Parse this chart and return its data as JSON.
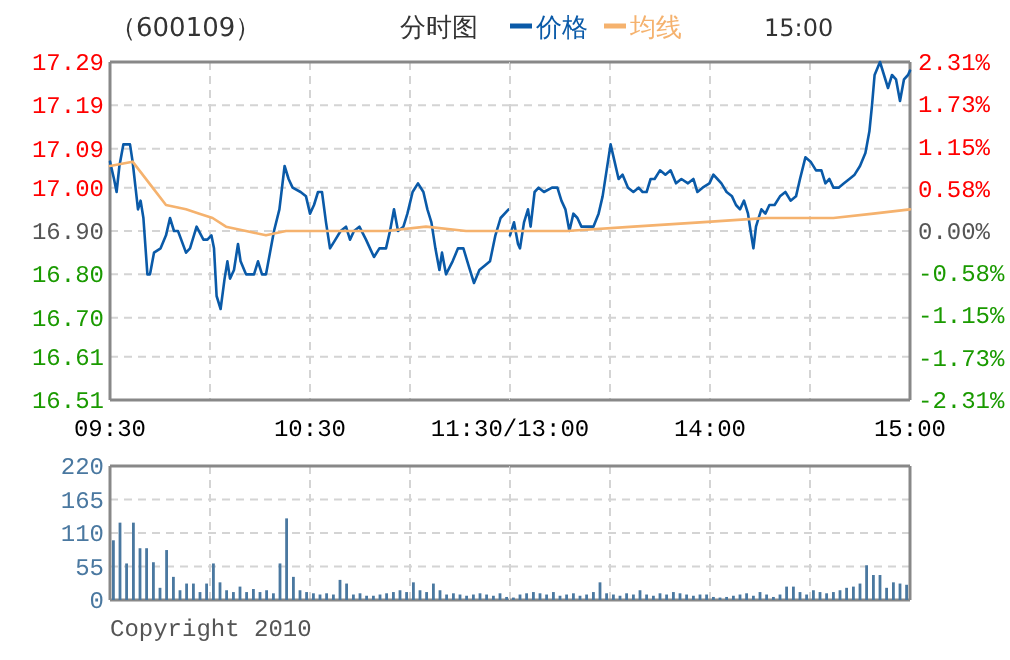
{
  "chart_data": [
    {
      "type": "line",
      "title": "（600109）",
      "subtitle": "分时图",
      "annotations": [
        "15:00"
      ],
      "legend": "top",
      "grid": true,
      "xlim": [
        9.5,
        11.5
      ],
      "xticks": [
        {
          "value": 9.5,
          "label": "09:30"
        },
        {
          "value": 10,
          "label": null
        },
        {
          "value": 10.5,
          "label": "10:30"
        },
        {
          "value": 11,
          "label": null
        },
        {
          "value": 11.5,
          "label": "11:30/13:00"
        }
      ],
      "ylim": [
        16.51,
        17.29
      ],
      "yticks": [
        16.51,
        16.61,
        {
          "value": 16.7,
          "label": "16.70"
        },
        {
          "value": 16.8,
          "label": "16.80"
        },
        {
          "value": 16.9,
          "label": "16.90"
        },
        {
          "value": 17.0,
          "label": "17.00"
        },
        17.09,
        17.19,
        17.29
      ],
      "series": [
        {
          "name": "价格",
          "color": "#0a5aa8",
          "x": [
            9.5,
            9.52,
            9.533,
            9.547,
            9.567,
            9.6,
            9.613,
            9.64,
            9.653,
            9.667,
            9.687,
            9.7,
            9.72,
            9.753,
            9.78,
            9.8,
            9.82,
            9.84,
            9.88,
            9.9,
            9.933,
            9.967,
            9.987,
            10.007,
            10.02,
            10.033,
            10.053,
            10.073,
            10.087,
            10.1,
            10.12,
            10.14,
            10.153,
            10.18,
            10.22,
            10.24,
            10.26,
            10.28,
            10.32,
            10.347,
            10.373,
            10.393,
            10.413,
            10.453,
            10.48,
            10.5,
            10.52,
            10.54,
            10.56,
            10.58,
            10.6,
            10.627,
            10.653,
            10.68,
            10.7,
            10.72,
            10.747,
            10.78,
            10.8,
            10.82,
            10.847,
            10.88,
            10.9,
            10.92,
            10.94,
            10.967,
            10.987,
            11.013,
            11.04,
            11.067,
            11.087,
            11.107,
            11.127,
            11.147,
            11.16,
            11.18,
            11.213,
            11.24,
            11.267,
            11.293,
            11.32,
            11.347,
            11.373,
            11.4,
            11.427,
            11.453,
            11.493
          ],
          "values": [
            17.06,
            17.02,
            16.99,
            17.05,
            17.1,
            17.1,
            17.06,
            16.95,
            16.97,
            16.93,
            16.8,
            16.8,
            16.85,
            16.86,
            16.89,
            16.93,
            16.9,
            16.9,
            16.85,
            16.86,
            16.91,
            16.88,
            16.88,
            16.89,
            16.86,
            16.75,
            16.72,
            16.79,
            16.83,
            16.79,
            16.81,
            16.87,
            16.83,
            16.8,
            16.8,
            16.83,
            16.8,
            16.8,
            16.9,
            16.95,
            17.05,
            17.02,
            17.0,
            16.99,
            16.98,
            16.94,
            16.96,
            16.99,
            16.99,
            16.92,
            16.86,
            16.88,
            16.9,
            16.91,
            16.88,
            16.9,
            16.91,
            16.88,
            16.86,
            16.84,
            16.86,
            16.86,
            16.9,
            16.95,
            16.9,
            16.91,
            16.94,
            16.99,
            17.01,
            16.99,
            16.95,
            16.92,
            16.86,
            16.81,
            16.85,
            16.8,
            16.83,
            16.86,
            16.86,
            16.82,
            16.78,
            16.81,
            16.82,
            16.83,
            16.89,
            16.93,
            16.95
          ]
        },
        {
          "name": "均线",
          "color": "#f5b26e",
          "x": [
            9.5,
            9.613,
            9.713,
            9.78,
            9.88,
            9.947,
            10.013,
            10.08,
            10.18,
            10.28,
            10.38,
            10.48,
            10.68,
            10.88,
            11.08,
            11.28,
            11.45,
            11.5
          ],
          "values": [
            17.05,
            17.06,
            17.0,
            16.96,
            16.95,
            16.94,
            16.93,
            16.91,
            16.9,
            16.89,
            16.9,
            16.9,
            16.9,
            16.9,
            16.91,
            16.9,
            16.9,
            16.9
          ]
        }
      ]
    },
    {
      "type": "line",
      "grid": true,
      "tick_labels": "x",
      "xlim": [
        13,
        15
      ],
      "xticks": [
        {
          "value": 13,
          "label": null
        },
        {
          "value": 13.5,
          "label": null
        },
        {
          "value": 14,
          "label": "14:00"
        },
        {
          "value": 14.5,
          "label": null
        },
        {
          "value": 15,
          "label": "15:00"
        }
      ],
      "ylim": [
        16.51,
        17.29
      ],
      "yticks": [
        16.51,
        16.61,
        16.7,
        16.8,
        16.9,
        17.0,
        17.09,
        17.19,
        17.29
      ],
      "y2lim": [
        -2.31,
        2.31
      ],
      "y2ticks": [
        {
          "value": -2.31,
          "label": "-2.31%"
        },
        {
          "value": -1.73,
          "label": "-1.73%"
        },
        {
          "value": -1.15,
          "label": "-1.15%"
        },
        {
          "value": -0.58,
          "label": "-0.58%"
        },
        {
          "value": 0,
          "label": "0.00%"
        },
        {
          "value": 0.58,
          "label": "0.58%"
        },
        {
          "value": 1.15,
          "label": "1.15%"
        },
        {
          "value": 1.73,
          "label": "1.73%"
        },
        {
          "value": 2.31,
          "label": "2.31%"
        }
      ],
      "series": [
        {
          "color": "#0a5aa8",
          "x": [
            13,
            13.02,
            13.04,
            13.05,
            13.07,
            13.09,
            13.103,
            13.123,
            13.143,
            13.17,
            13.21,
            13.237,
            13.257,
            13.277,
            13.297,
            13.317,
            13.337,
            13.357,
            13.383,
            13.417,
            13.443,
            13.463,
            13.483,
            13.503,
            13.523,
            13.543,
            13.563,
            13.59,
            13.617,
            13.643,
            13.663,
            13.683,
            13.703,
            13.723,
            13.75,
            13.777,
            13.803,
            13.83,
            13.857,
            13.89,
            13.917,
            13.937,
            13.963,
            13.997,
            14.017,
            14.037,
            14.057,
            14.083,
            14.11,
            14.13,
            14.15,
            14.17,
            14.19,
            14.203,
            14.217,
            14.23,
            14.243,
            14.257,
            14.277,
            14.297,
            14.323,
            14.35,
            14.377,
            14.403,
            14.43,
            14.45,
            14.477,
            14.503,
            14.53,
            14.557,
            14.577,
            14.597,
            14.617,
            14.643,
            14.67,
            14.697,
            14.723,
            14.75,
            14.777,
            14.797,
            14.81,
            14.823,
            14.85,
            14.87,
            14.89,
            14.91,
            14.93,
            14.95,
            14.97,
            14.99,
            15
          ],
          "values": [
            16.89,
            16.92,
            16.87,
            16.86,
            16.92,
            16.95,
            16.91,
            16.99,
            17.0,
            16.99,
            17.0,
            17.0,
            16.97,
            16.95,
            16.9,
            16.94,
            16.93,
            16.91,
            16.91,
            16.91,
            16.94,
            16.98,
            17.04,
            17.1,
            17.06,
            17.02,
            17.03,
            17.0,
            16.99,
            17.0,
            16.99,
            16.99,
            17.02,
            17.02,
            17.04,
            17.03,
            17.04,
            17.01,
            17.02,
            17.01,
            17.02,
            16.99,
            17.0,
            17.01,
            17.03,
            17.02,
            17.01,
            16.99,
            16.98,
            16.96,
            16.95,
            16.97,
            16.94,
            16.9,
            16.86,
            16.91,
            16.93,
            16.95,
            16.94,
            16.96,
            16.96,
            16.98,
            16.99,
            16.97,
            16.98,
            17.02,
            17.07,
            17.06,
            17.04,
            17.04,
            17.01,
            17.02,
            17.0,
            17.0,
            17.01,
            17.02,
            17.03,
            17.05,
            17.08,
            17.13,
            17.19,
            17.26,
            17.29,
            17.26,
            17.23,
            17.26,
            17.25,
            17.2,
            17.25,
            17.26,
            17.27
          ]
        },
        {
          "color": "#f5b26e",
          "x": [
            13,
            13.283,
            13.617,
            13.95,
            14.283,
            14.617,
            14.817,
            15
          ],
          "values": [
            16.9,
            16.9,
            16.91,
            16.92,
            16.93,
            16.93,
            16.94,
            16.95
          ]
        }
      ]
    },
    {
      "type": "bar",
      "grid": true,
      "tick_labels": "y",
      "color": "#4a78a0",
      "annotations": [
        "Copyright 2010"
      ],
      "xlim": [
        9.5,
        11.5
      ],
      "xticks": [
        9.5,
        10,
        10.5,
        11,
        11.5
      ],
      "ylim": [
        0,
        220
      ],
      "yticks": [
        0,
        55,
        110,
        165,
        220
      ],
      "x": [
        9.517,
        9.55,
        9.583,
        9.617,
        9.65,
        9.683,
        9.717,
        9.75,
        9.783,
        9.817,
        9.85,
        9.883,
        9.917,
        9.95,
        9.983,
        10.017,
        10.05,
        10.083,
        10.117,
        10.15,
        10.183,
        10.217,
        10.25,
        10.283,
        10.317,
        10.35,
        10.383,
        10.417,
        10.45,
        10.483,
        10.517,
        10.55,
        10.583,
        10.617,
        10.65,
        10.683,
        10.717,
        10.75,
        10.783,
        10.817,
        10.85,
        10.883,
        10.917,
        10.95,
        10.983,
        11.017,
        11.05,
        11.083,
        11.117,
        11.15,
        11.183,
        11.217,
        11.25,
        11.283,
        11.317,
        11.35,
        11.383,
        11.417,
        11.45,
        11.483
      ],
      "values": [
        98,
        127,
        60,
        127,
        85,
        85,
        62,
        20,
        82,
        38,
        16,
        27,
        27,
        13,
        27,
        60,
        29,
        16,
        13,
        22,
        13,
        18,
        13,
        16,
        11,
        60,
        134,
        38,
        16,
        13,
        11,
        9,
        11,
        9,
        33,
        27,
        9,
        11,
        7,
        7,
        9,
        11,
        13,
        16,
        13,
        29,
        16,
        13,
        27,
        16,
        9,
        11,
        9,
        7,
        9,
        11,
        9,
        7,
        11,
        5
      ]
    },
    {
      "type": "bar",
      "grid": true,
      "tick_labels": false,
      "color": "#4a78a0",
      "xlim": [
        13,
        15
      ],
      "xticks": [
        13,
        13.5,
        14,
        14.5,
        15
      ],
      "ylim": [
        0,
        220
      ],
      "yticks": [
        0,
        55,
        110,
        165,
        220
      ],
      "x": [
        13.017,
        13.05,
        13.083,
        13.117,
        13.15,
        13.183,
        13.217,
        13.25,
        13.283,
        13.317,
        13.35,
        13.383,
        13.417,
        13.45,
        13.483,
        13.517,
        13.55,
        13.583,
        13.617,
        13.65,
        13.683,
        13.717,
        13.75,
        13.783,
        13.817,
        13.85,
        13.883,
        13.917,
        13.95,
        13.983,
        14.017,
        14.05,
        14.083,
        14.117,
        14.15,
        14.183,
        14.217,
        14.25,
        14.283,
        14.317,
        14.35,
        14.383,
        14.417,
        14.45,
        14.483,
        14.517,
        14.55,
        14.583,
        14.617,
        14.65,
        14.683,
        14.717,
        14.75,
        14.783,
        14.817,
        14.85,
        14.883,
        14.917,
        14.95,
        14.983
      ],
      "values": [
        4,
        9,
        11,
        13,
        11,
        9,
        13,
        7,
        9,
        11,
        7,
        9,
        13,
        29,
        11,
        9,
        7,
        11,
        9,
        16,
        9,
        7,
        11,
        9,
        13,
        11,
        9,
        7,
        9,
        9,
        5,
        4,
        5,
        7,
        9,
        11,
        7,
        13,
        9,
        5,
        9,
        22,
        22,
        13,
        9,
        16,
        13,
        11,
        13,
        16,
        20,
        22,
        27,
        57,
        41,
        41,
        20,
        29,
        27,
        25
      ]
    }
  ]
}
